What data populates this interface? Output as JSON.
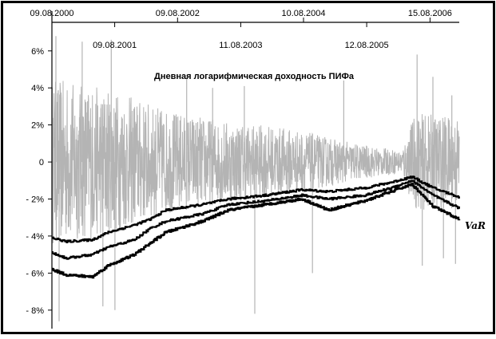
{
  "chart_data": {
    "type": "line",
    "title": "Дневная логарифмическая доходность ПИФа",
    "annotation": "VaR",
    "y_axis": {
      "min": -9,
      "max": 7.8,
      "ticks": [
        6,
        4,
        2,
        0,
        -2,
        -4,
        -6,
        -8
      ],
      "tick_labels": [
        "6%",
        "4%",
        "2%",
        "0",
        "- 2%",
        "- 4%",
        "- 6%",
        "- 8%"
      ]
    },
    "x_axis": {
      "start": "2000-08-09",
      "end": "2007-02-01",
      "top_dates": [
        "2000-08-09",
        "2002-08-09",
        "2004-08-10",
        "2006-08-15"
      ],
      "top_labels": [
        "09.08.2000",
        "09.08.2002",
        "10.08.2004",
        "15.08.2006"
      ],
      "bottom_dates": [
        "2001-08-09",
        "2003-08-11",
        "2005-08-12"
      ],
      "bottom_labels": [
        "09.08.2001",
        "11.08.2003",
        "12.08.2005"
      ]
    },
    "colors": {
      "returns": "#b4b4b4",
      "var": "#000000"
    },
    "returns_amplitude": [
      [
        "2000-08-09",
        4.5
      ],
      [
        "2001-03-01",
        4.2
      ],
      [
        "2001-09-01",
        3.8
      ],
      [
        "2002-06-01",
        2.8
      ],
      [
        "2003-06-01",
        2.2
      ],
      [
        "2004-06-01",
        1.8
      ],
      [
        "2005-06-01",
        1.0
      ],
      [
        "2006-03-01",
        0.6
      ],
      [
        "2006-05-15",
        2.6
      ],
      [
        "2007-02-01",
        2.5
      ]
    ],
    "var_series": [
      {
        "values": [
          [
            "2000-08-09",
            -4.1
          ],
          [
            "2000-11-01",
            -4.3
          ],
          [
            "2001-04-01",
            -4.2
          ],
          [
            "2001-07-01",
            -3.8
          ],
          [
            "2001-12-01",
            -3.4
          ],
          [
            "2002-03-01",
            -3.1
          ],
          [
            "2002-06-01",
            -2.6
          ],
          [
            "2003-01-01",
            -2.3
          ],
          [
            "2003-06-01",
            -2.0
          ],
          [
            "2004-01-01",
            -1.8
          ],
          [
            "2004-08-01",
            -1.5
          ],
          [
            "2005-01-01",
            -1.6
          ],
          [
            "2005-08-01",
            -1.4
          ],
          [
            "2006-01-01",
            -1.1
          ],
          [
            "2006-05-01",
            -0.8
          ],
          [
            "2006-09-01",
            -1.4
          ],
          [
            "2007-02-01",
            -1.9
          ]
        ]
      },
      {
        "values": [
          [
            "2000-08-09",
            -4.9
          ],
          [
            "2000-11-01",
            -5.2
          ],
          [
            "2001-04-01",
            -5.0
          ],
          [
            "2001-07-01",
            -4.6
          ],
          [
            "2001-12-01",
            -4.2
          ],
          [
            "2002-03-01",
            -3.6
          ],
          [
            "2002-06-01",
            -3.2
          ],
          [
            "2003-01-01",
            -2.8
          ],
          [
            "2003-06-01",
            -2.3
          ],
          [
            "2004-01-01",
            -2.1
          ],
          [
            "2004-08-01",
            -1.8
          ],
          [
            "2005-01-01",
            -2.0
          ],
          [
            "2005-08-01",
            -1.8
          ],
          [
            "2006-01-01",
            -1.4
          ],
          [
            "2006-05-01",
            -1.0
          ],
          [
            "2006-09-01",
            -1.8
          ],
          [
            "2007-02-01",
            -2.5
          ]
        ]
      },
      {
        "values": [
          [
            "2000-08-09",
            -5.8
          ],
          [
            "2000-11-01",
            -6.1
          ],
          [
            "2001-04-01",
            -6.2
          ],
          [
            "2001-07-01",
            -5.6
          ],
          [
            "2001-12-01",
            -5.0
          ],
          [
            "2002-03-01",
            -4.4
          ],
          [
            "2002-06-01",
            -3.8
          ],
          [
            "2003-01-01",
            -3.2
          ],
          [
            "2003-06-01",
            -2.6
          ],
          [
            "2004-01-01",
            -2.3
          ],
          [
            "2004-08-01",
            -2.0
          ],
          [
            "2005-01-01",
            -2.6
          ],
          [
            "2005-08-01",
            -2.1
          ],
          [
            "2006-01-01",
            -1.6
          ],
          [
            "2006-05-01",
            -1.2
          ],
          [
            "2006-09-01",
            -2.4
          ],
          [
            "2007-02-01",
            -3.1
          ]
        ]
      }
    ],
    "returns_spikes": [
      [
        "2000-09-01",
        6.8
      ],
      [
        "2000-09-20",
        -8.6
      ],
      [
        "2001-02-01",
        6.5
      ],
      [
        "2001-06-01",
        -7.8
      ],
      [
        "2001-07-20",
        6.6
      ],
      [
        "2001-08-10",
        -8.0
      ],
      [
        "2002-10-01",
        4.6
      ],
      [
        "2003-03-01",
        4.0
      ],
      [
        "2003-09-01",
        4.1
      ],
      [
        "2003-11-01",
        -8.2
      ],
      [
        "2004-10-01",
        -6.0
      ],
      [
        "2005-04-01",
        4.4
      ],
      [
        "2006-06-01",
        5.8
      ],
      [
        "2006-07-01",
        -5.6
      ],
      [
        "2006-09-01",
        4.6
      ],
      [
        "2006-11-01",
        -5.2
      ],
      [
        "2006-12-20",
        3.6
      ],
      [
        "2007-01-10",
        -5.5
      ]
    ],
    "grid": false,
    "legend": "none"
  }
}
